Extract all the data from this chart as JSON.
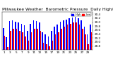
{
  "title": "Milwaukee Weather  Barometric Pressure",
  "subtitle": "Daily High/Low",
  "high_values": [
    29.72,
    29.25,
    30.05,
    30.08,
    30.02,
    29.98,
    29.9,
    29.85,
    29.55,
    29.92,
    30.08,
    30.05,
    29.98,
    29.48,
    29.38,
    29.28,
    29.58,
    29.78,
    29.88,
    30.02,
    30.1,
    30.14,
    30.18,
    30.22,
    30.28,
    30.18,
    30.08,
    29.78,
    29.38,
    29.88
  ],
  "low_values": [
    29.32,
    28.75,
    29.58,
    29.68,
    29.68,
    29.58,
    29.48,
    29.28,
    29.08,
    29.48,
    29.68,
    29.68,
    29.58,
    28.98,
    28.88,
    28.78,
    29.08,
    29.38,
    29.48,
    29.68,
    29.78,
    29.88,
    29.93,
    29.98,
    29.98,
    29.88,
    29.68,
    29.38,
    28.88,
    29.48
  ],
  "x_labels": [
    "1",
    "",
    "3",
    "",
    "5",
    "",
    "7",
    "",
    "9",
    "",
    "11",
    "",
    "13",
    "",
    "15",
    "",
    "17",
    "",
    "19",
    "",
    "21",
    "",
    "23",
    "",
    "25",
    "",
    "27",
    "",
    "29",
    ""
  ],
  "ylim_min": 28.6,
  "ylim_max": 30.5,
  "yticks": [
    28.8,
    29.0,
    29.2,
    29.4,
    29.6,
    29.8,
    30.0,
    30.2,
    30.4
  ],
  "bar_color_high": "#0000ff",
  "bar_color_low": "#ff0000",
  "bg_color": "#ffffff",
  "legend_high": "High",
  "legend_low": "Low",
  "title_fontsize": 4.2,
  "tick_fontsize": 3.0,
  "n_bars": 30
}
